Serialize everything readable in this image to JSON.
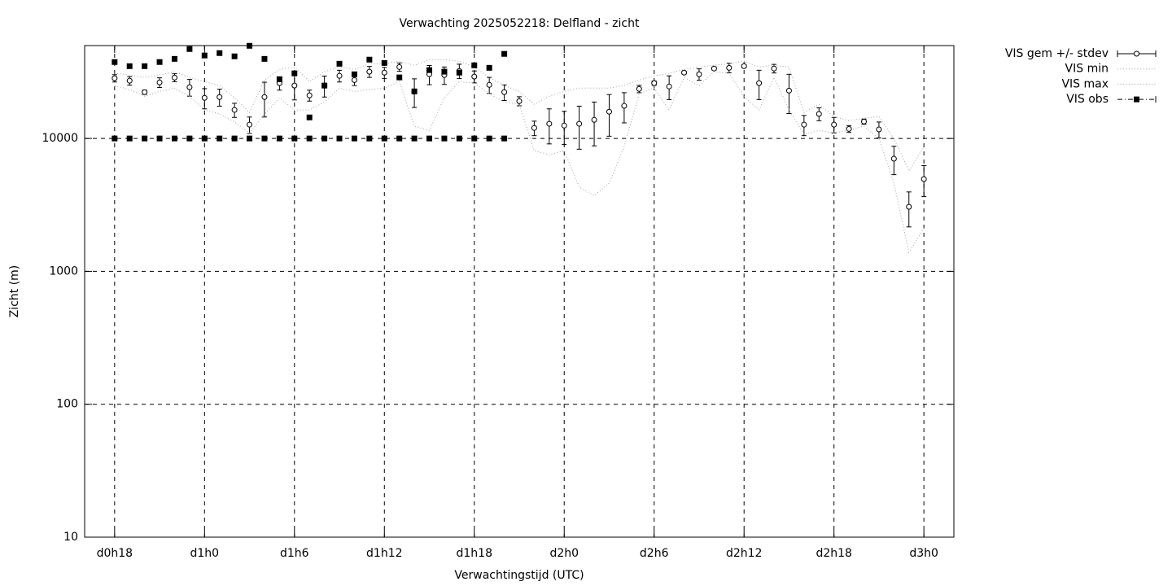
{
  "chart_data": {
    "type": "line",
    "title": "Verwachting 2025052218: Delfland - zicht",
    "x_label": "Verwachtingstijd (UTC)",
    "y_label": "Zicht (m)",
    "log_y": true,
    "grid": true,
    "legend": "outside-top-right",
    "xlim": [
      16,
      74
    ],
    "xticks": [
      {
        "value": 18,
        "label": "d0h18"
      },
      {
        "value": 24,
        "label": "d1h0"
      },
      {
        "value": 30,
        "label": "d1h6"
      },
      {
        "value": 36,
        "label": "d1h12"
      },
      {
        "value": 42,
        "label": "d1h18"
      },
      {
        "value": 48,
        "label": "d2h0"
      },
      {
        "value": 54,
        "label": "d2h6"
      },
      {
        "value": 60,
        "label": "d2h12"
      },
      {
        "value": 66,
        "label": "d2h18"
      },
      {
        "value": 72,
        "label": "d3h0"
      }
    ],
    "ylim": [
      10,
      50000
    ],
    "yticks": [
      10,
      100,
      1000,
      10000
    ],
    "x": [
      18,
      19,
      20,
      21,
      22,
      23,
      24,
      25,
      26,
      27,
      28,
      29,
      30,
      31,
      32,
      33,
      34,
      35,
      36,
      37,
      38,
      39,
      40,
      41,
      42,
      43,
      44,
      45,
      46,
      47,
      48,
      49,
      50,
      51,
      52,
      53,
      54,
      55,
      56,
      57,
      58,
      59,
      60,
      61,
      62,
      63,
      64,
      65,
      66,
      67,
      68,
      69,
      70,
      71,
      72
    ],
    "series": [
      {
        "name": "VIS gem +/- stdev",
        "color": "#000000",
        "marker": "circle",
        "values": [
          28400,
          27200,
          22300,
          26400,
          28700,
          24300,
          20200,
          20500,
          16400,
          12700,
          20500,
          26100,
          25000,
          21100,
          25000,
          29600,
          27500,
          31800,
          31300,
          34500,
          22600,
          30400,
          30000,
          32200,
          29200,
          25300,
          22300,
          19100,
          12000,
          12900,
          12500,
          12900,
          13800,
          15900,
          17600,
          23600,
          26100,
          24600,
          31300,
          30400,
          33600,
          34000,
          35000,
          26100,
          33600,
          22900,
          12700,
          15300,
          12700,
          11800,
          13400,
          11700,
          7040,
          3060,
          4950
        ],
        "errors": [
          1800,
          2000,
          800,
          2200,
          2000,
          3500,
          3500,
          3000,
          2000,
          1800,
          6000,
          3000,
          5500,
          2000,
          4500,
          3000,
          2500,
          3000,
          3000,
          2500,
          5500,
          5000,
          4500,
          4000,
          3000,
          3500,
          3000,
          1500,
          1500,
          3800,
          3500,
          4600,
          5000,
          5500,
          4500,
          1500,
          1000,
          5000,
          800,
          3000,
          900,
          2800,
          1000,
          6500,
          2500,
          7500,
          2200,
          1700,
          1700,
          700,
          600,
          1600,
          1700,
          900,
          1300
        ]
      },
      {
        "name": "VIS min",
        "color": "#a0a0a0",
        "marker": "none",
        "values": [
          25000,
          23300,
          20800,
          22600,
          23900,
          20800,
          16400,
          15300,
          13300,
          11000,
          15300,
          20200,
          16400,
          16400,
          18800,
          23900,
          22600,
          23300,
          23900,
          26800,
          12400,
          11500,
          20200,
          26800,
          26100,
          21700,
          18800,
          18100,
          8100,
          7550,
          8100,
          4300,
          3730,
          4610,
          8690,
          21700,
          23900,
          16400,
          28800,
          25000,
          31800,
          30900,
          20800,
          16400,
          28800,
          16400,
          10700,
          11500,
          11000,
          11500,
          12400,
          10000,
          4610,
          1390,
          2120
        ]
      },
      {
        "name": "VIS max",
        "color": "#a0a0a0",
        "marker": "none",
        "values": [
          30900,
          30000,
          28800,
          30000,
          31800,
          28800,
          26800,
          25000,
          20200,
          15700,
          27500,
          33100,
          34500,
          26800,
          31800,
          34500,
          33100,
          36500,
          36500,
          38100,
          35500,
          39200,
          39200,
          38100,
          34500,
          28800,
          25000,
          22600,
          18100,
          20800,
          22600,
          23900,
          23900,
          23900,
          25000,
          27500,
          29600,
          30900,
          33100,
          34500,
          35500,
          36500,
          38100,
          34500,
          35500,
          34500,
          15700,
          18100,
          14600,
          13600,
          14200,
          14600,
          10000,
          5690,
          8690
        ]
      },
      {
        "name": "VIS obs",
        "color": "#000000",
        "marker": "square",
        "values": [
          37600,
          35000,
          35000,
          37600,
          39700,
          47100,
          42100,
          43900,
          41500,
          49800,
          39700,
          27900,
          30900,
          14400,
          25000,
          36500,
          30400,
          39200,
          37000,
          28800,
          22600,
          32700,
          31800,
          31300,
          35500,
          34000,
          43300,
          null,
          null,
          null,
          null,
          null,
          null,
          null,
          null,
          null,
          null,
          null,
          null,
          null,
          null,
          null,
          null,
          null,
          null,
          null,
          null,
          null,
          null,
          null,
          null,
          null,
          null,
          null,
          null
        ]
      },
      {
        "color": "#000000",
        "marker": "square",
        "values": [
          10000,
          10000,
          10000,
          10000,
          10000,
          10000,
          10000,
          10000,
          10000,
          10000,
          10000,
          10000,
          10000,
          10000,
          10000,
          10000,
          10000,
          10000,
          10000,
          10000,
          10000,
          10000,
          10000,
          10000,
          10000,
          10000,
          10000,
          null,
          null,
          null,
          null,
          null,
          null,
          null,
          null,
          null,
          null,
          null,
          null,
          null,
          null,
          null,
          null,
          null,
          null,
          null,
          null,
          null,
          null,
          null,
          null,
          null,
          null,
          null,
          null
        ]
      }
    ]
  }
}
